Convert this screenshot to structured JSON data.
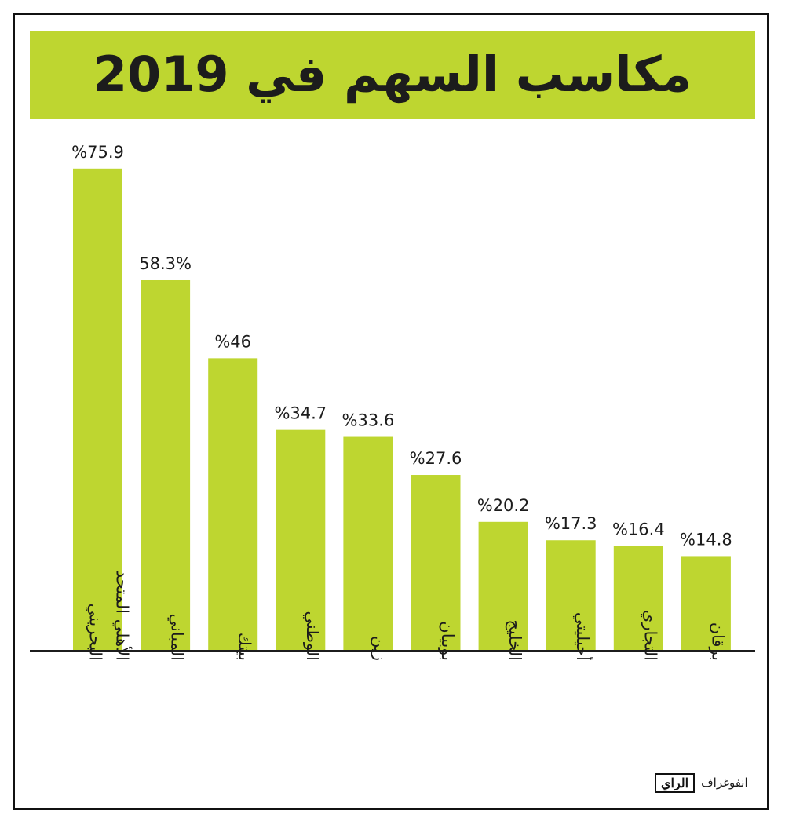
{
  "title": "مكاسب السهم في 2019",
  "brand": {
    "text": "انفوغراف",
    "logo": "الراي"
  },
  "colors": {
    "bar": "#bed630",
    "band": "#bed630",
    "text": "#1c1c1c"
  },
  "chart_data": {
    "type": "bar",
    "categories": [
      "الأهلي المتحد البحريني",
      "المباني",
      "بيتك",
      "الوطني",
      "زين",
      "بوبيان",
      "الخليج",
      "أجيليتي",
      "التجاري",
      "برقان"
    ],
    "values": [
      75.9,
      58.3,
      46,
      34.7,
      33.6,
      27.6,
      20.2,
      17.3,
      16.4,
      14.8
    ],
    "value_labels": [
      "%75.9",
      "58.3%",
      "%46",
      "%34.7",
      "%33.6",
      "%27.6",
      "%20.2",
      "%17.3",
      "%16.4",
      "%14.8"
    ],
    "title": "مكاسب السهم في 2019",
    "xlabel": "",
    "ylabel": "",
    "ylim": [
      0,
      76
    ],
    "grid": false,
    "legend": "none"
  }
}
